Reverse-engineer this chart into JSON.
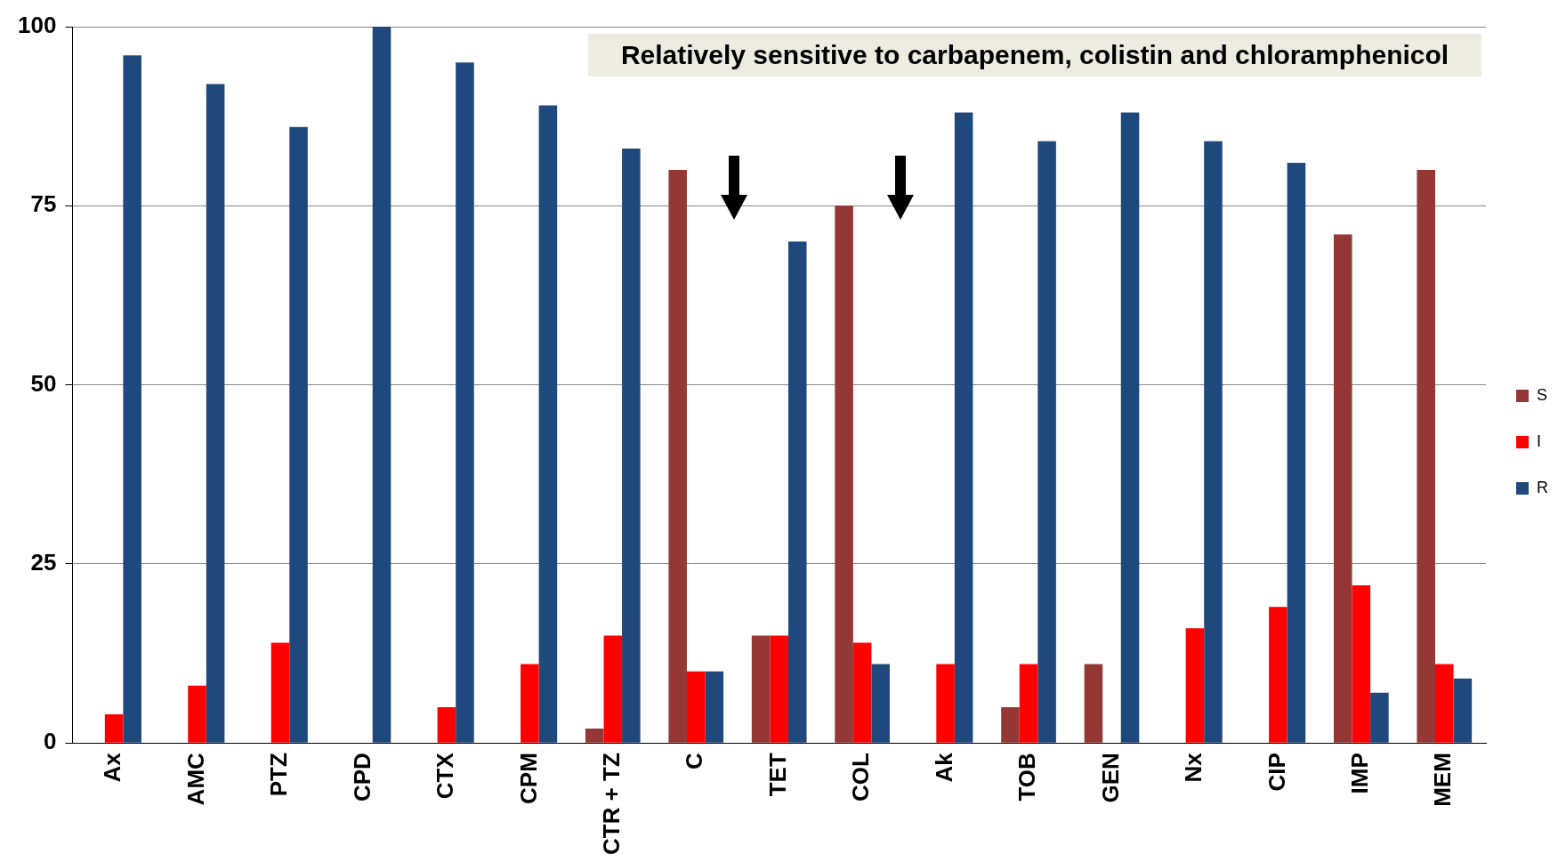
{
  "chart_data": {
    "type": "bar",
    "categories": [
      "Ax",
      "AMC",
      "PTZ",
      "CPD",
      "CTX",
      "CPM",
      "CTR + TZ",
      "C",
      "TET",
      "COL",
      "Ak",
      "TOB",
      "GEN",
      "Nx",
      "CIP",
      "IMP",
      "MEM"
    ],
    "series": [
      {
        "name": "S",
        "color": "#953735",
        "values": [
          0,
          0,
          0,
          0,
          0,
          0,
          2,
          80,
          15,
          75,
          0,
          5,
          11,
          0,
          0,
          71,
          80
        ]
      },
      {
        "name": "I",
        "color": "#ff0000",
        "values": [
          4,
          8,
          14,
          0,
          5,
          11,
          15,
          10,
          15,
          14,
          11,
          11,
          0,
          16,
          19,
          22,
          11
        ]
      },
      {
        "name": "R",
        "color": "#1f497d",
        "values": [
          96,
          92,
          86,
          100,
          95,
          89,
          83,
          10,
          70,
          11,
          88,
          84,
          88,
          84,
          81,
          7,
          9
        ]
      }
    ],
    "ylim": [
      0,
      100
    ],
    "yticks": [
      0,
      25,
      50,
      75,
      100
    ],
    "grid": "y",
    "legend": "right",
    "annotations": [
      "Relatively sensitive to carbapenem, colistin and chloramphenicol"
    ]
  }
}
